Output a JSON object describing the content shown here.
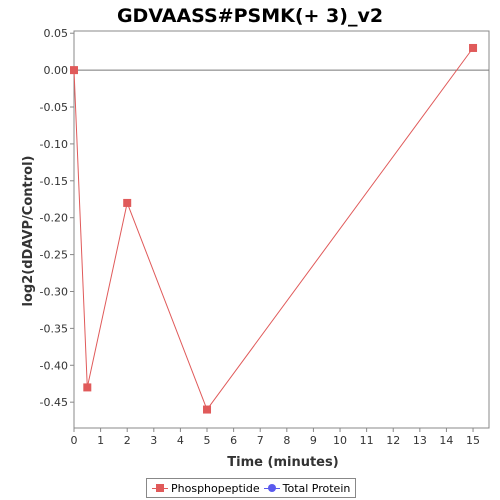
{
  "chart_data": {
    "type": "line",
    "title": "GDVAASS#PSMK(+ 3)_v2",
    "xlabel": "Time (minutes)",
    "ylabel": "log2(dDAVP/Control)",
    "xlim": [
      0,
      15.6
    ],
    "ylim": [
      -0.485,
      0.053
    ],
    "xticks": [
      0,
      1,
      2,
      3,
      4,
      5,
      6,
      7,
      8,
      9,
      10,
      11,
      12,
      13,
      14,
      15
    ],
    "yticks": [
      0.05,
      0.0,
      -0.05,
      -0.1,
      -0.15,
      -0.2,
      -0.25,
      -0.3,
      -0.35,
      -0.4,
      -0.45
    ],
    "ytick_labels": [
      "0.05",
      "0.00",
      "-0.05",
      "-0.10",
      "-0.15",
      "-0.20",
      "-0.25",
      "-0.30",
      "-0.35",
      "-0.40",
      "-0.45"
    ],
    "zero_line": 0,
    "legend_position": "bottom",
    "series": [
      {
        "name": "Phosphopeptide",
        "color": "#e05a5a",
        "marker": "square",
        "x": [
          0,
          0.5,
          2,
          5,
          15
        ],
        "y": [
          0.0,
          -0.43,
          -0.18,
          -0.46,
          0.03
        ]
      },
      {
        "name": "Total Protein",
        "color": "#5a5aee",
        "marker": "circle",
        "x": [],
        "y": []
      }
    ]
  }
}
